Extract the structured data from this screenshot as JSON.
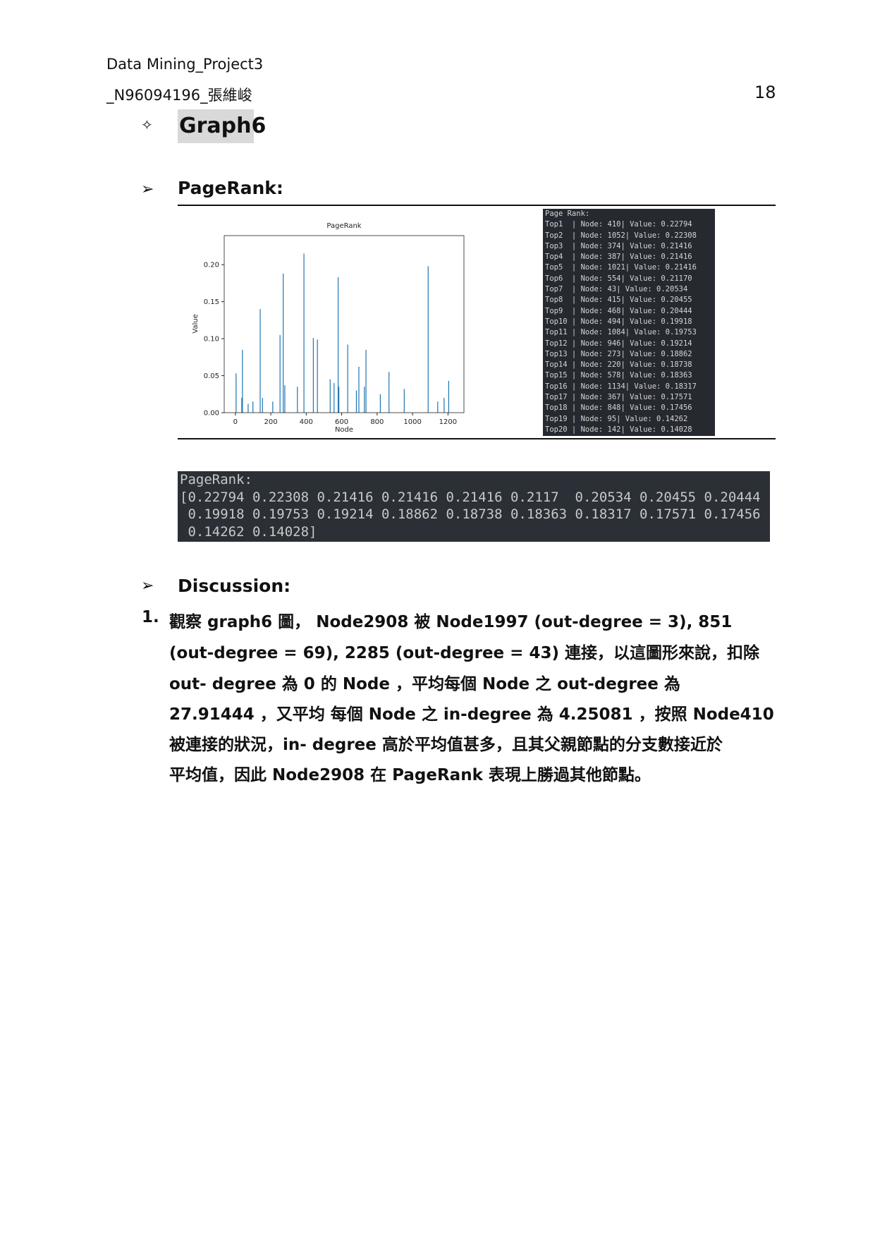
{
  "header": {
    "line1": "Data Mining_Project3",
    "line2": "_N96094196_張維峻",
    "page": "18"
  },
  "section_bullet": "✧",
  "section_title": "Graph6",
  "pagerank_bullet": "➢",
  "pagerank_heading": "PageRank:",
  "chart_data": {
    "type": "bar",
    "title": "PageRank",
    "x_label": "Node",
    "y_label": "Value",
    "color": "#1f77b4",
    "x": [
      4,
      36,
      40,
      72,
      99,
      140,
      153,
      211,
      252,
      270,
      279,
      350,
      387,
      440,
      463,
      535,
      557,
      580,
      584,
      634,
      683,
      697,
      728,
      737,
      818,
      867,
      953,
      1088,
      1142,
      1178,
      1204
    ],
    "values": [
      0.053,
      0.02,
      0.085,
      0.012,
      0.015,
      0.14,
      0.02,
      0.015,
      0.105,
      0.188,
      0.037,
      0.035,
      0.215,
      0.101,
      0.099,
      0.045,
      0.04,
      0.183,
      0.035,
      0.092,
      0.03,
      0.062,
      0.035,
      0.085,
      0.025,
      0.055,
      0.032,
      0.198,
      0.015,
      0.02,
      0.043
    ],
    "xlim": [
      -63,
      1290
    ],
    "ylim": [
      0,
      0.2393
    ],
    "xticks": [
      0,
      200,
      400,
      600,
      800,
      1000,
      1200
    ],
    "yticks": [
      {
        "value": 0,
        "label": "0.00"
      },
      0.05,
      {
        "value": 0.1,
        "label": "0.10"
      },
      0.15,
      {
        "value": 0.2,
        "label": "0.20"
      }
    ]
  },
  "console_top": {
    "lines": [
      "Page Rank:",
      "Top1  | Node: 410| Value: 0.22794",
      "Top2  | Node: 1052| Value: 0.22308",
      "Top3  | Node: 374| Value: 0.21416",
      "Top4  | Node: 387| Value: 0.21416",
      "Top5  | Node: 1021| Value: 0.21416",
      "Top6  | Node: 554| Value: 0.21170",
      "Top7  | Node: 43| Value: 0.20534",
      "Top8  | Node: 415| Value: 0.20455",
      "Top9  | Node: 468| Value: 0.20444",
      "Top10 | Node: 494| Value: 0.19918",
      "Top11 | Node: 1084| Value: 0.19753",
      "Top12 | Node: 946| Value: 0.19214",
      "Top13 | Node: 273| Value: 0.18862",
      "Top14 | Node: 220| Value: 0.18738",
      "Top15 | Node: 578| Value: 0.18363",
      "Top16 | Node: 1134| Value: 0.18317",
      "Top17 | Node: 367| Value: 0.17571",
      "Top18 | Node: 848| Value: 0.17456",
      "Top19 | Node: 95| Value: 0.14262",
      "Top20 | Node: 142| Value: 0.14028"
    ]
  },
  "console_list": {
    "lines": [
      "PageRank:",
      "[0.22794 0.22308 0.21416 0.21416 0.21416 0.2117  0.20534 0.20455 0.20444",
      " 0.19918 0.19753 0.19214 0.18862 0.18738 0.18363 0.18317 0.17571 0.17456",
      " 0.14262 0.14028]"
    ]
  },
  "discussion_bullet": "➢",
  "discussion_heading": "Discussion:",
  "discussion": {
    "number": "1.",
    "lines": [
      "觀察 graph6 圖， Node2908 被 Node1997 (out-degree = 3), 851",
      "(out-degree = 69), 2285 (out-degree = 43) 連接，以這圖形來說，扣除",
      "out- degree 為 0 的 Node ，平均每個 Node 之 out-degree 為",
      "27.91444 ，又平均 每個 Node 之 in-degree 為 4.25081 ，按照 Node410",
      "被連接的狀況，in- degree 高於平均值甚多，且其父親節點的分支數接近於",
      "平均值，因此 Node2908 在 PageRank 表現上勝過其他節點。"
    ]
  }
}
